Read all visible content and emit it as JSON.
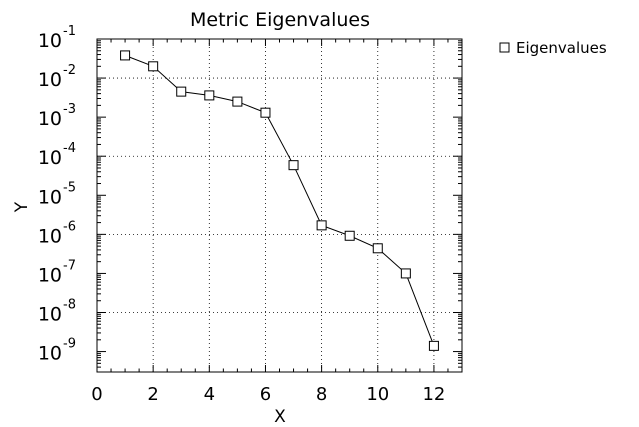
{
  "chart_data": {
    "type": "line",
    "title": "Metric Eigenvalues",
    "xlabel": "X",
    "ylabel": "Y",
    "xlim": [
      0,
      13
    ],
    "ylim": [
      3e-10,
      0.1
    ],
    "yscale": "log",
    "grid": true,
    "legend_position": "top-right outside",
    "x_ticks": [
      0,
      2,
      4,
      6,
      8,
      10,
      12
    ],
    "x_tick_labels": [
      "0",
      "2",
      "4",
      "6",
      "8",
      "10",
      "12"
    ],
    "y_tick_exponents": [
      -9,
      -8,
      -7,
      -6,
      -5,
      -4,
      -3,
      -2,
      -1
    ],
    "y_tick_base": "10",
    "series": [
      {
        "name": "Eigenvalues",
        "marker": "square",
        "color": "#000000",
        "x": [
          1,
          2,
          3,
          4,
          5,
          6,
          7,
          8,
          9,
          10,
          11,
          12
        ],
        "y": [
          0.038,
          0.02,
          0.0045,
          0.0036,
          0.0025,
          0.0013,
          5.9e-05,
          1.7e-06,
          9.2e-07,
          4.4e-07,
          1e-07,
          1.4e-09
        ]
      }
    ]
  }
}
